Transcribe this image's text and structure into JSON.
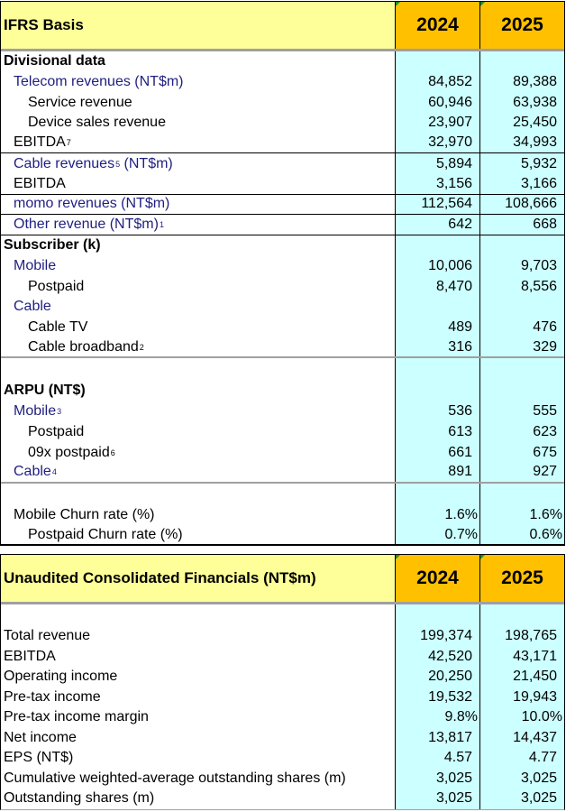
{
  "ifrs": {
    "title": "IFRS Basis",
    "years": [
      "2024",
      "2025"
    ],
    "rows": [
      {
        "label": "Divisional data",
        "note": "",
        "values": [
          "",
          ""
        ]
      },
      {
        "label": "Telecom revenues (NT$m)",
        "note": "",
        "values": [
          "84,852",
          "89,388"
        ]
      },
      {
        "label": "Service revenue",
        "note": "",
        "values": [
          "60,946",
          "63,938"
        ]
      },
      {
        "label": "Device sales revenue",
        "note": "",
        "values": [
          "23,907",
          "25,450"
        ]
      },
      {
        "label": "EBITDA",
        "note": "7",
        "values": [
          "32,970",
          "34,993"
        ]
      },
      {
        "label": "Cable revenues",
        "note": "5",
        "label_suffix": " (NT$m)",
        "values": [
          "5,894",
          "5,932"
        ]
      },
      {
        "label": "EBITDA",
        "note": "",
        "values": [
          "3,156",
          "3,166"
        ]
      },
      {
        "label": "momo revenues (NT$m)",
        "note": "",
        "values": [
          "112,564",
          "108,666"
        ]
      },
      {
        "label": "Other revenue (NT$m)",
        "note": "1",
        "values": [
          "642",
          "668"
        ]
      },
      {
        "label": "Subscriber (k)",
        "note": "",
        "values": [
          "",
          ""
        ]
      },
      {
        "label": "Mobile",
        "note": "",
        "values": [
          "10,006",
          "9,703"
        ]
      },
      {
        "label": "Postpaid",
        "note": "",
        "values": [
          "8,470",
          "8,556"
        ]
      },
      {
        "label": "Cable",
        "note": "",
        "values": [
          "",
          ""
        ]
      },
      {
        "label": "Cable TV",
        "note": "",
        "values": [
          "489",
          "476"
        ]
      },
      {
        "label": "Cable broadband",
        "note": "2",
        "values": [
          "316",
          "329"
        ]
      },
      {
        "label": "",
        "note": "",
        "values": [
          "",
          ""
        ]
      },
      {
        "label": "ARPU (NT$)",
        "note": "",
        "values": [
          "",
          ""
        ]
      },
      {
        "label": "Mobile",
        "note": "3",
        "values": [
          "536",
          "555"
        ]
      },
      {
        "label": "Postpaid",
        "note": "",
        "values": [
          "613",
          "623"
        ]
      },
      {
        "label": "09x postpaid",
        "note": "6",
        "values": [
          "661",
          "675"
        ]
      },
      {
        "label": "Cable",
        "note": "4",
        "values": [
          "891",
          "927"
        ]
      },
      {
        "label": "",
        "note": "",
        "values": [
          "",
          ""
        ]
      },
      {
        "label": "Mobile Churn rate (%)",
        "note": "",
        "values": [
          "1.6%",
          "1.6%"
        ]
      },
      {
        "label": "Postpaid Churn rate (%)",
        "note": "",
        "values": [
          "0.7%",
          "0.6%"
        ]
      }
    ]
  },
  "consolidated": {
    "title": "Unaudited Consolidated Financials (NT$m)",
    "years": [
      "2024",
      "2025"
    ],
    "rows": [
      {
        "label": "",
        "note": "",
        "values": [
          "",
          ""
        ]
      },
      {
        "label": "Total revenue",
        "note": "",
        "values": [
          "199,374",
          "198,765"
        ]
      },
      {
        "label": "EBITDA",
        "note": "",
        "values": [
          "42,520",
          "43,171"
        ]
      },
      {
        "label": "Operating income",
        "note": "",
        "values": [
          "20,250",
          "21,450"
        ]
      },
      {
        "label": "Pre-tax income",
        "note": "",
        "values": [
          "19,532",
          "19,943"
        ]
      },
      {
        "label": "Pre-tax income margin",
        "note": "",
        "values": [
          "9.8%",
          "10.0%"
        ]
      },
      {
        "label": "Net income",
        "note": "",
        "values": [
          "13,817",
          "14,437"
        ]
      },
      {
        "label": "EPS (NT$)",
        "note": "",
        "values": [
          "4.57",
          "4.77"
        ]
      },
      {
        "label": "Cumulative weighted-average outstanding shares (m)",
        "note": "",
        "values": [
          "3,025",
          "3,025"
        ]
      },
      {
        "label": "Outstanding shares (m)",
        "note": "",
        "values": [
          "3,025",
          "3,025"
        ]
      }
    ]
  },
  "colors": {
    "header_label_bg": "#ffff99",
    "header_year_bg": "#ffc000",
    "value_bg": "#ccffff",
    "subitem_text": "#1f1f80"
  }
}
